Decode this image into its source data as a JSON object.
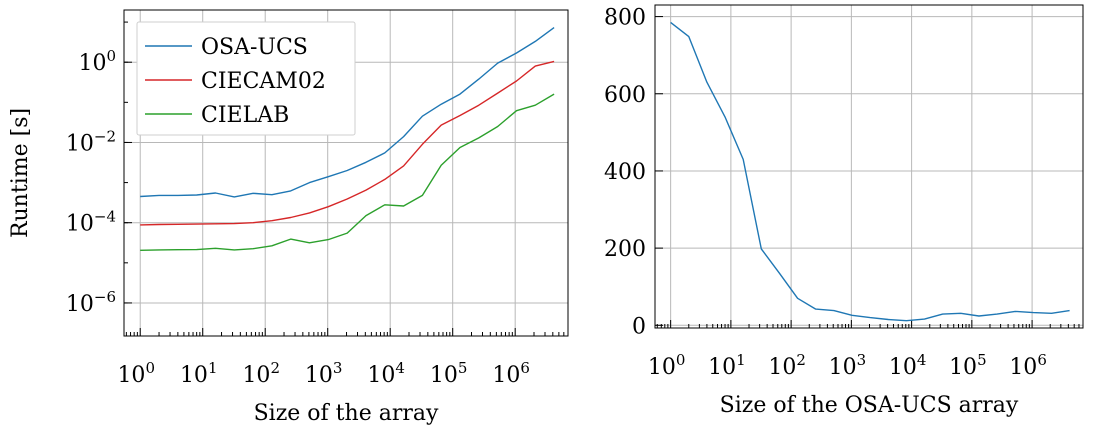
{
  "chart_data": [
    {
      "type": "line",
      "xlabel": "Size of the array",
      "ylabel": "Runtime [s]",
      "xscale": "log",
      "yscale": "log",
      "xlim": [
        0.55,
        7000000
      ],
      "ylim": [
        1.5e-07,
        20
      ],
      "xticks": [
        {
          "base": "10",
          "exp": "0",
          "value": 1
        },
        {
          "base": "10",
          "exp": "1",
          "value": 10
        },
        {
          "base": "10",
          "exp": "2",
          "value": 100
        },
        {
          "base": "10",
          "exp": "3",
          "value": 1000
        },
        {
          "base": "10",
          "exp": "4",
          "value": 10000
        },
        {
          "base": "10",
          "exp": "5",
          "value": 100000
        },
        {
          "base": "10",
          "exp": "6",
          "value": 1000000
        }
      ],
      "yticks": [
        {
          "base": "10",
          "exp": "−6",
          "value": 1e-06
        },
        {
          "base": "10",
          "exp": "−4",
          "value": 0.0001
        },
        {
          "base": "10",
          "exp": "−2",
          "value": 0.01
        },
        {
          "base": "10",
          "exp": "0",
          "value": 1
        }
      ],
      "grid": true,
      "legend_position": "top-left",
      "x": [
        1,
        2,
        4,
        8,
        16,
        32,
        64,
        128,
        256,
        512,
        1024,
        2048,
        4096,
        8192,
        16384,
        32768,
        65536,
        131072,
        262144,
        524288,
        1048576,
        2097152,
        4194304
      ],
      "series": [
        {
          "name": "OSA-UCS",
          "color": "#1f77b4",
          "values": [
            0.00045,
            0.00048,
            0.00048,
            0.00049,
            0.00055,
            0.00044,
            0.00054,
            0.0005,
            0.00062,
            0.001,
            0.0014,
            0.002,
            0.0032,
            0.0055,
            0.014,
            0.045,
            0.09,
            0.16,
            0.38,
            0.95,
            1.7,
            3.3,
            7.3
          ]
        },
        {
          "name": "CIECAM02",
          "color": "#d62728",
          "values": [
            8.8e-05,
            9e-05,
            9.1e-05,
            9.2e-05,
            9.4e-05,
            9.5e-05,
            0.0001,
            0.000112,
            0.000135,
            0.000175,
            0.00025,
            0.00039,
            0.00065,
            0.0012,
            0.0026,
            0.009,
            0.027,
            0.047,
            0.085,
            0.17,
            0.34,
            0.8,
            1.05
          ]
        },
        {
          "name": "CIELAB",
          "color": "#2ca02c",
          "values": [
            2.05e-05,
            2.1e-05,
            2.12e-05,
            2.13e-05,
            2.3e-05,
            2.1e-05,
            2.25e-05,
            2.65e-05,
            3.9e-05,
            3.15e-05,
            3.8e-05,
            5.5e-05,
            0.00015,
            0.00028,
            0.00026,
            0.00048,
            0.0027,
            0.0075,
            0.013,
            0.025,
            0.062,
            0.085,
            0.16
          ]
        }
      ]
    },
    {
      "type": "line",
      "xlabel": "Size of the OSA-UCS array",
      "ylabel": "",
      "xscale": "log",
      "yscale": "linear",
      "xlim": [
        0.55,
        7000000
      ],
      "ylim": [
        -7,
        830
      ],
      "xticks": [
        {
          "base": "10",
          "exp": "0",
          "value": 1
        },
        {
          "base": "10",
          "exp": "1",
          "value": 10
        },
        {
          "base": "10",
          "exp": "2",
          "value": 100
        },
        {
          "base": "10",
          "exp": "3",
          "value": 1000
        },
        {
          "base": "10",
          "exp": "4",
          "value": 10000
        },
        {
          "base": "10",
          "exp": "5",
          "value": 100000
        },
        {
          "base": "10",
          "exp": "6",
          "value": 1000000
        }
      ],
      "yticks": [
        {
          "label": "0",
          "value": 0
        },
        {
          "label": "200",
          "value": 200
        },
        {
          "label": "400",
          "value": 400
        },
        {
          "label": "600",
          "value": 600
        },
        {
          "label": "800",
          "value": 800
        }
      ],
      "grid": true,
      "x": [
        1,
        2,
        4,
        8,
        16,
        32,
        64,
        128,
        256,
        512,
        1024,
        2048,
        4096,
        8192,
        16384,
        32768,
        65536,
        131072,
        262144,
        524288,
        1048576,
        2097152,
        4194304
      ],
      "series": [
        {
          "color": "#1f77b4",
          "values": [
            785,
            748,
            630,
            540,
            430,
            198,
            135,
            70,
            42,
            38,
            26,
            20,
            15,
            12,
            16,
            29,
            31,
            24,
            29,
            36,
            33,
            31,
            38
          ]
        }
      ]
    }
  ]
}
